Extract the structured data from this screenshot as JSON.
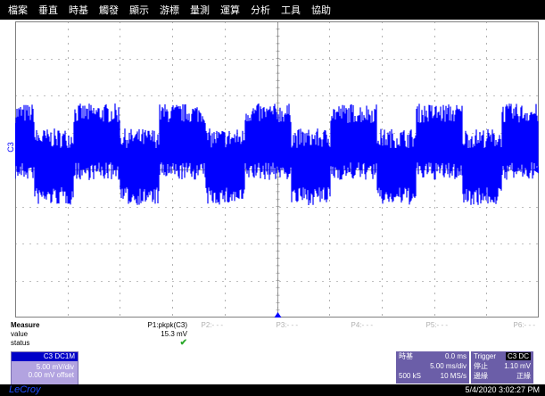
{
  "menubar": {
    "items": [
      "檔案",
      "垂直",
      "時基",
      "觸發",
      "顯示",
      "游標",
      "量測",
      "運算",
      "分析",
      "工具",
      "協助"
    ]
  },
  "screen": {
    "channel_label": "C3",
    "trace_color": "#0000ff",
    "grid_color": "#808080"
  },
  "measure": {
    "heading": "Measure",
    "row_value_label": "value",
    "row_status_label": "status",
    "params": [
      {
        "name": "P1:pkpk(C3)",
        "value": "15.3 mV",
        "status": "check"
      },
      {
        "name": "P2:- - -",
        "value": "",
        "status": ""
      },
      {
        "name": "P3:- - -",
        "value": "",
        "status": ""
      },
      {
        "name": "P4:- - -",
        "value": "",
        "status": ""
      },
      {
        "name": "P5:- - -",
        "value": "",
        "status": ""
      },
      {
        "name": "P6:- - -",
        "value": "",
        "status": ""
      }
    ]
  },
  "channel": {
    "tag": "C3 DC1M",
    "scale": "5.00 mV/div",
    "offset": "0.00 mV offset",
    "color": "#0000c8"
  },
  "timebase": {
    "title": "時基",
    "delay": "0.0 ms",
    "scale": "5.00 ms/div",
    "samples": "500 kS",
    "rate": "10 MS/s"
  },
  "trigger": {
    "title": "Trigger",
    "tag": "C3 DC",
    "state": "停止",
    "level": "1.10 mV",
    "mode": "邊緣",
    "slope": "正緣"
  },
  "status": {
    "brand": "LeCroy",
    "datetime": "5/4/2020 3:02:27 PM"
  }
}
